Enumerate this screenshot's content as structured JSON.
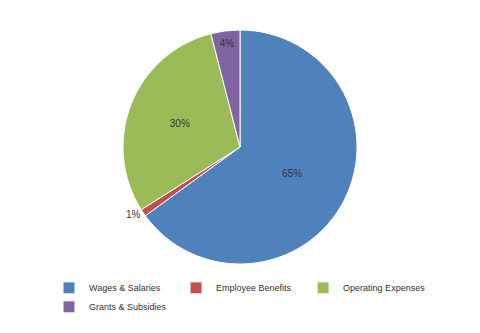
{
  "chart_data": {
    "type": "pie",
    "categories": [
      "Wages & Salaries",
      "Employee Benefits",
      "Operating Expenses",
      "Grants & Subsidies"
    ],
    "values": [
      65,
      1,
      30,
      4
    ],
    "value_labels": [
      "65%",
      "1%",
      "30%",
      "4%"
    ],
    "colors": [
      "#4f81bd",
      "#c0504d",
      "#9bbb59",
      "#8064a2"
    ],
    "data_labels": true,
    "legend": "bottom"
  }
}
